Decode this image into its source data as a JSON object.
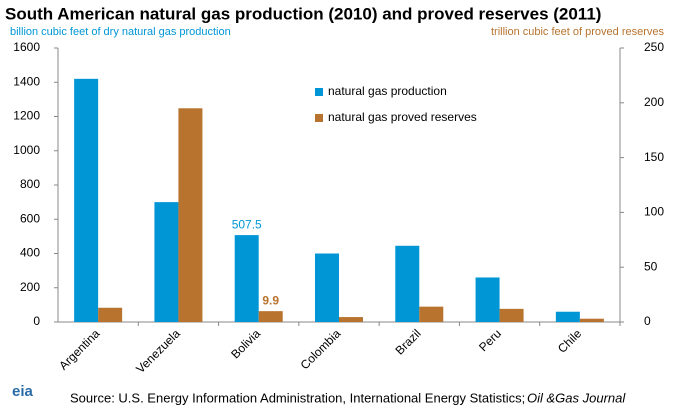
{
  "chart_data": {
    "type": "bar",
    "title": "South American natural gas production (2010) and proved reserves (2011)",
    "y_label": "billion cubic feet of dry natural gas production",
    "y2_label": "trillion cubic feet of proved reserves",
    "categories": [
      "Argentina",
      "Venezuela",
      "Bolivia",
      "Colombia",
      "Brazil",
      "Peru",
      "Chile"
    ],
    "series": [
      {
        "name": "natural gas production",
        "color": "#0096d6",
        "values": [
          1420,
          700,
          507.5,
          400,
          445,
          260,
          60
        ],
        "value_labels": [
          null,
          null,
          "507.5",
          null,
          null,
          null,
          null
        ]
      },
      {
        "name": "natural gas proved reserves",
        "color": "#b8732e",
        "axis": "y2",
        "values": [
          13,
          195,
          9.9,
          4.5,
          14,
          12,
          3
        ],
        "value_labels": [
          null,
          null,
          "9.9",
          null,
          null,
          null,
          null
        ]
      }
    ],
    "ylim": [
      0,
      1600
    ],
    "yticks": [
      0,
      200,
      400,
      600,
      800,
      1000,
      1200,
      1400,
      1600
    ],
    "y2lim": [
      0,
      250
    ],
    "y2ticks": [
      0,
      50,
      100,
      150,
      200,
      250
    ],
    "grid": false,
    "source": "Source: U.S. Energy Information Administration, International Energy Statistics;",
    "source_journal": "Oil &Gas Journal",
    "logo": "eia"
  }
}
